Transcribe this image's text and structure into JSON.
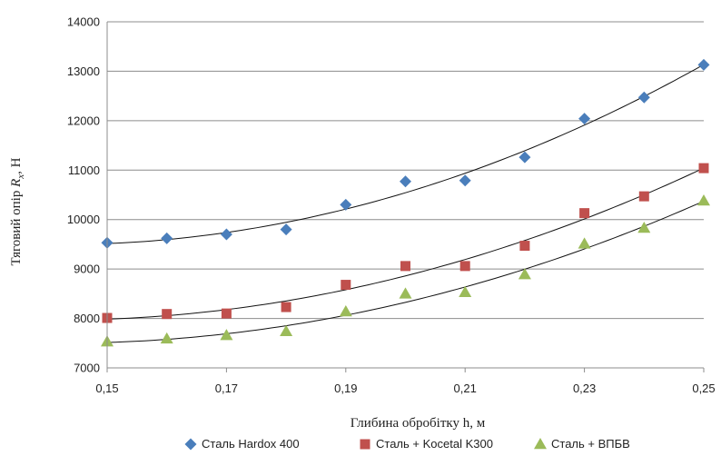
{
  "chart_data": {
    "type": "scatter",
    "title": "",
    "xlabel": "Глибина обробітку h, м",
    "ylabel_prefix": "Тяговий опір ",
    "ylabel_symbol": "R",
    "ylabel_subscript": "x",
    "ylabel_suffix": ", Н",
    "xlim": [
      0.15,
      0.25
    ],
    "ylim": [
      7000,
      14000
    ],
    "x_ticks": [
      0.15,
      0.17,
      0.19,
      0.21,
      0.23,
      0.25
    ],
    "x_tick_labels": [
      "0,15",
      "0,17",
      "0,19",
      "0,21",
      "0,23",
      "0,25"
    ],
    "y_ticks": [
      7000,
      8000,
      9000,
      10000,
      11000,
      12000,
      13000,
      14000
    ],
    "y_tick_labels": [
      "7000",
      "8000",
      "9000",
      "10000",
      "11000",
      "12000",
      "13000",
      "14000"
    ],
    "grid": "horizontal",
    "legend_position": "bottom",
    "x": [
      0.15,
      0.16,
      0.17,
      0.18,
      0.19,
      0.2,
      0.21,
      0.22,
      0.23,
      0.24,
      0.25
    ],
    "series": [
      {
        "name": "Сталь Hardox 400",
        "marker": "diamond",
        "color": "#4a7ebb",
        "values": [
          9530,
          9620,
          9700,
          9800,
          10300,
          10770,
          10790,
          11260,
          12040,
          12470,
          13130
        ],
        "trend": "polynomial"
      },
      {
        "name": "Сталь + Kocetal K300",
        "marker": "square",
        "color": "#c0504d",
        "values": [
          8010,
          8090,
          8100,
          8230,
          8680,
          9060,
          9060,
          9470,
          10130,
          10470,
          11040
        ],
        "trend": "polynomial"
      },
      {
        "name": "Сталь + ВПБВ",
        "marker": "triangle",
        "color": "#9bbb59",
        "values": [
          7530,
          7590,
          7660,
          7740,
          8140,
          8500,
          8530,
          8890,
          9510,
          9830,
          10380
        ],
        "trend": "polynomial"
      }
    ],
    "trend_color": "#111111"
  }
}
